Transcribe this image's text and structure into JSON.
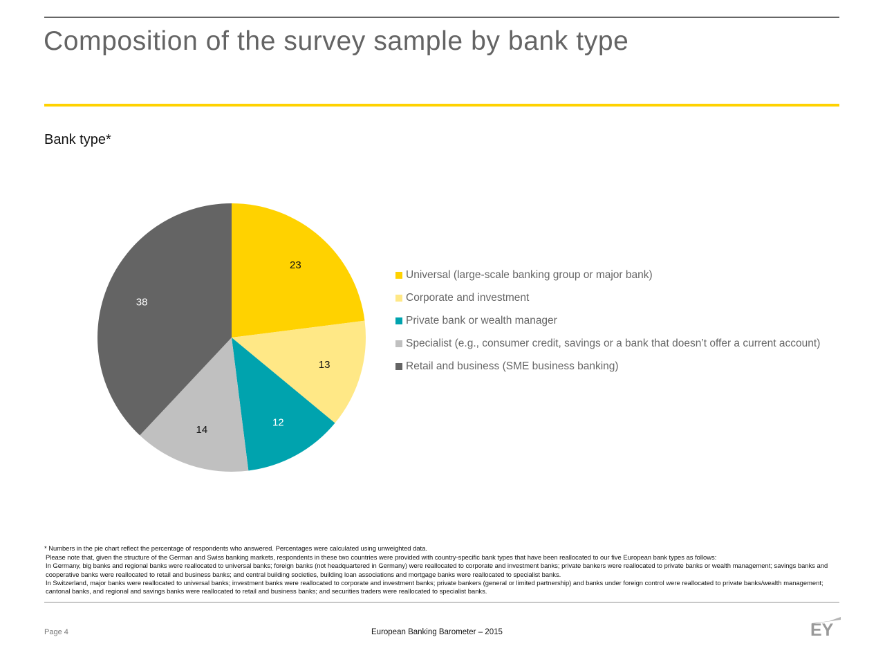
{
  "page": {
    "title": "Composition of the survey sample by bank type",
    "page_number": "Page 4",
    "report_name": "European Banking Barometer – 2015",
    "logo_text": "EY"
  },
  "chart_data": {
    "type": "pie",
    "title": "Bank type*",
    "categories": [
      "Universal (large-scale banking group or major bank)",
      "Corporate and investment",
      "Private bank or wealth manager",
      "Specialist (e.g., consumer credit, savings or a bank that doesn’t offer a current account)",
      "Retail and business (SME business banking)"
    ],
    "values": [
      23,
      13,
      12,
      14,
      38
    ],
    "colors": [
      "#ffd200",
      "#ffe886",
      "#00a3ae",
      "#c0c0c0",
      "#646464"
    ],
    "label_colors": [
      "#111111",
      "#111111",
      "#ffffff",
      "#111111",
      "#ffffff"
    ],
    "legend_position": "right"
  },
  "footnotes": [
    "* Numbers in the pie chart reflect the percentage of respondents who answered. Percentages were calculated using unweighted data.",
    "Please note that, given the structure of the German and Swiss banking markets, respondents in these two countries were provided with country-specific bank types that have been reallocated to our five European bank types as follows:",
    "In Germany, big banks and regional banks were reallocated to universal banks; foreign banks (not headquartered in Germany) were reallocated to corporate and investment banks; private bankers were reallocated to private banks or wealth management; savings banks and cooperative banks were reallocated to retail and business banks; and central building societies, building loan associations and mortgage banks were reallocated to specialist banks.",
    "In Switzerland, major banks were reallocated to universal banks; investment banks were reallocated to corporate and investment banks; private bankers (general or limited partnership) and banks under foreign control were reallocated to private banks/wealth management; cantonal banks, and regional and savings banks were reallocated to retail and business banks; and securities traders were reallocated to specialist banks."
  ]
}
